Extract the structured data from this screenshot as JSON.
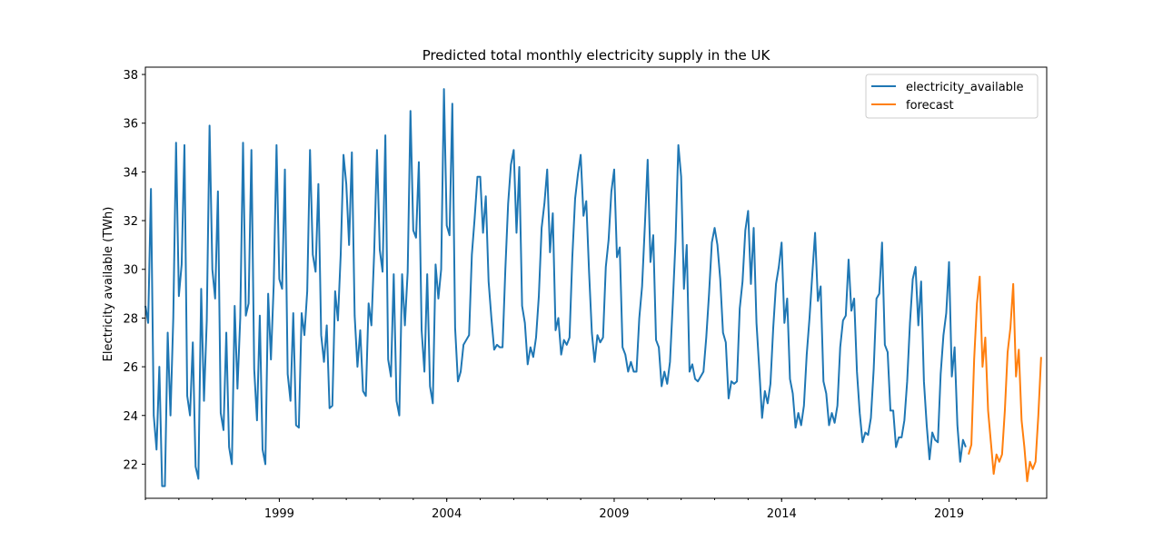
{
  "chart_data": {
    "type": "line",
    "title": "Predicted total monthly electricity supply in the UK",
    "xlabel": "",
    "ylabel": "Electricity available (TWh)",
    "ylim": [
      20.6,
      38.3
    ],
    "xlim": [
      "1995-01",
      "2021-12"
    ],
    "grid": false,
    "legend_position": "top-right",
    "x_ticks": [
      {
        "date": "1999-01",
        "label": "1999"
      },
      {
        "date": "2004-01",
        "label": "2004"
      },
      {
        "date": "2009-01",
        "label": "2009"
      },
      {
        "date": "2014-01",
        "label": "2014"
      },
      {
        "date": "2019-01",
        "label": "2019"
      }
    ],
    "y_ticks": [
      22,
      24,
      26,
      28,
      30,
      32,
      34,
      36,
      38
    ],
    "series": [
      {
        "name": "electricity_available",
        "color": "#1f77b4",
        "start": "1995-01",
        "values": [
          28.5,
          27.8,
          33.3,
          24.0,
          22.6,
          26.0,
          21.1,
          21.1,
          27.4,
          24.0,
          28.0,
          35.2,
          28.9,
          30.2,
          35.1,
          24.8,
          24.0,
          27.0,
          21.9,
          21.4,
          29.2,
          24.6,
          27.9,
          35.9,
          30.0,
          28.8,
          33.2,
          24.1,
          23.4,
          27.4,
          22.7,
          22.0,
          28.5,
          25.1,
          28.0,
          35.2,
          28.1,
          28.6,
          34.9,
          25.9,
          23.8,
          28.1,
          22.6,
          22.0,
          29.0,
          26.3,
          29.4,
          35.1,
          29.6,
          29.2,
          34.1,
          25.7,
          24.6,
          28.2,
          23.6,
          23.5,
          28.2,
          27.3,
          29.1,
          34.9,
          30.6,
          29.9,
          33.5,
          27.3,
          26.2,
          27.7,
          24.3,
          24.4,
          29.1,
          27.9,
          30.6,
          34.7,
          33.5,
          31.0,
          34.8,
          28.1,
          26.0,
          27.5,
          25.0,
          24.8,
          28.6,
          27.7,
          30.7,
          34.9,
          30.8,
          29.9,
          35.5,
          26.3,
          25.6,
          29.8,
          24.6,
          24.0,
          29.8,
          27.7,
          29.9,
          36.5,
          31.6,
          31.3,
          34.4,
          27.5,
          25.8,
          29.8,
          25.2,
          24.5,
          30.2,
          28.8,
          30.0,
          37.4,
          31.8,
          31.4,
          36.8,
          27.6,
          25.4,
          25.8,
          26.9,
          27.1,
          27.3,
          30.6,
          32.1,
          33.8,
          33.8,
          31.5,
          33.0,
          29.5,
          28.0,
          26.7,
          26.9,
          26.8,
          26.8,
          30.0,
          32.7,
          34.3,
          34.9,
          31.5,
          34.2,
          28.5,
          27.8,
          26.1,
          26.8,
          26.4,
          27.2,
          28.9,
          31.7,
          32.7,
          34.1,
          30.7,
          32.3,
          27.5,
          28.0,
          26.5,
          27.1,
          26.9,
          27.2,
          30.5,
          32.9,
          33.9,
          34.7,
          32.2,
          32.8,
          29.9,
          27.4,
          26.2,
          27.3,
          27.0,
          27.2,
          30.1,
          31.2,
          33.2,
          34.1,
          30.5,
          30.9,
          26.8,
          26.5,
          25.8,
          26.2,
          25.8,
          25.8,
          28.0,
          29.3,
          31.8,
          34.5,
          30.3,
          31.4,
          27.1,
          26.8,
          25.2,
          25.8,
          25.3,
          26.2,
          28.6,
          31.2,
          35.1,
          33.8,
          29.2,
          31.0,
          25.8,
          26.1,
          25.5,
          25.4,
          25.6,
          25.8,
          27.2,
          29.0,
          31.1,
          31.7,
          31.0,
          29.6,
          27.4,
          27.0,
          24.7,
          25.4,
          25.3,
          25.4,
          28.4,
          29.5,
          31.6,
          32.4,
          29.4,
          31.7,
          27.8,
          25.9,
          23.9,
          25.0,
          24.5,
          25.3,
          27.6,
          29.4,
          30.1,
          31.1,
          27.8,
          28.8,
          25.5,
          24.9,
          23.5,
          24.1,
          23.6,
          24.4,
          26.5,
          28.0,
          29.8,
          31.5,
          28.7,
          29.3,
          25.4,
          24.9,
          23.6,
          24.1,
          23.7,
          24.4,
          26.8,
          27.9,
          28.1,
          30.4,
          28.3,
          28.8,
          25.8,
          24.1,
          22.9,
          23.3,
          23.2,
          23.9,
          25.9,
          28.8,
          29.0,
          31.1,
          26.9,
          26.6,
          24.2,
          24.2,
          22.7,
          23.1,
          23.1,
          23.8,
          25.4,
          27.8,
          29.6,
          30.1,
          27.7,
          29.5,
          25.4,
          23.6,
          22.2,
          23.3,
          23.0,
          22.9,
          25.7,
          27.3,
          28.2,
          30.3,
          25.6,
          26.8,
          23.6,
          22.1,
          23.0,
          22.7
        ]
      },
      {
        "name": "forecast",
        "color": "#ff7f0e",
        "start": "2019-08",
        "values": [
          22.4,
          22.8,
          26.3,
          28.6,
          29.7,
          26.0,
          27.2,
          24.2,
          22.9,
          21.6,
          22.4,
          22.1,
          22.4,
          24.2,
          26.6,
          27.6,
          29.4,
          25.6,
          26.7,
          23.8,
          22.7,
          21.3,
          22.1,
          21.8,
          22.1,
          24.0,
          26.4
        ]
      }
    ]
  }
}
